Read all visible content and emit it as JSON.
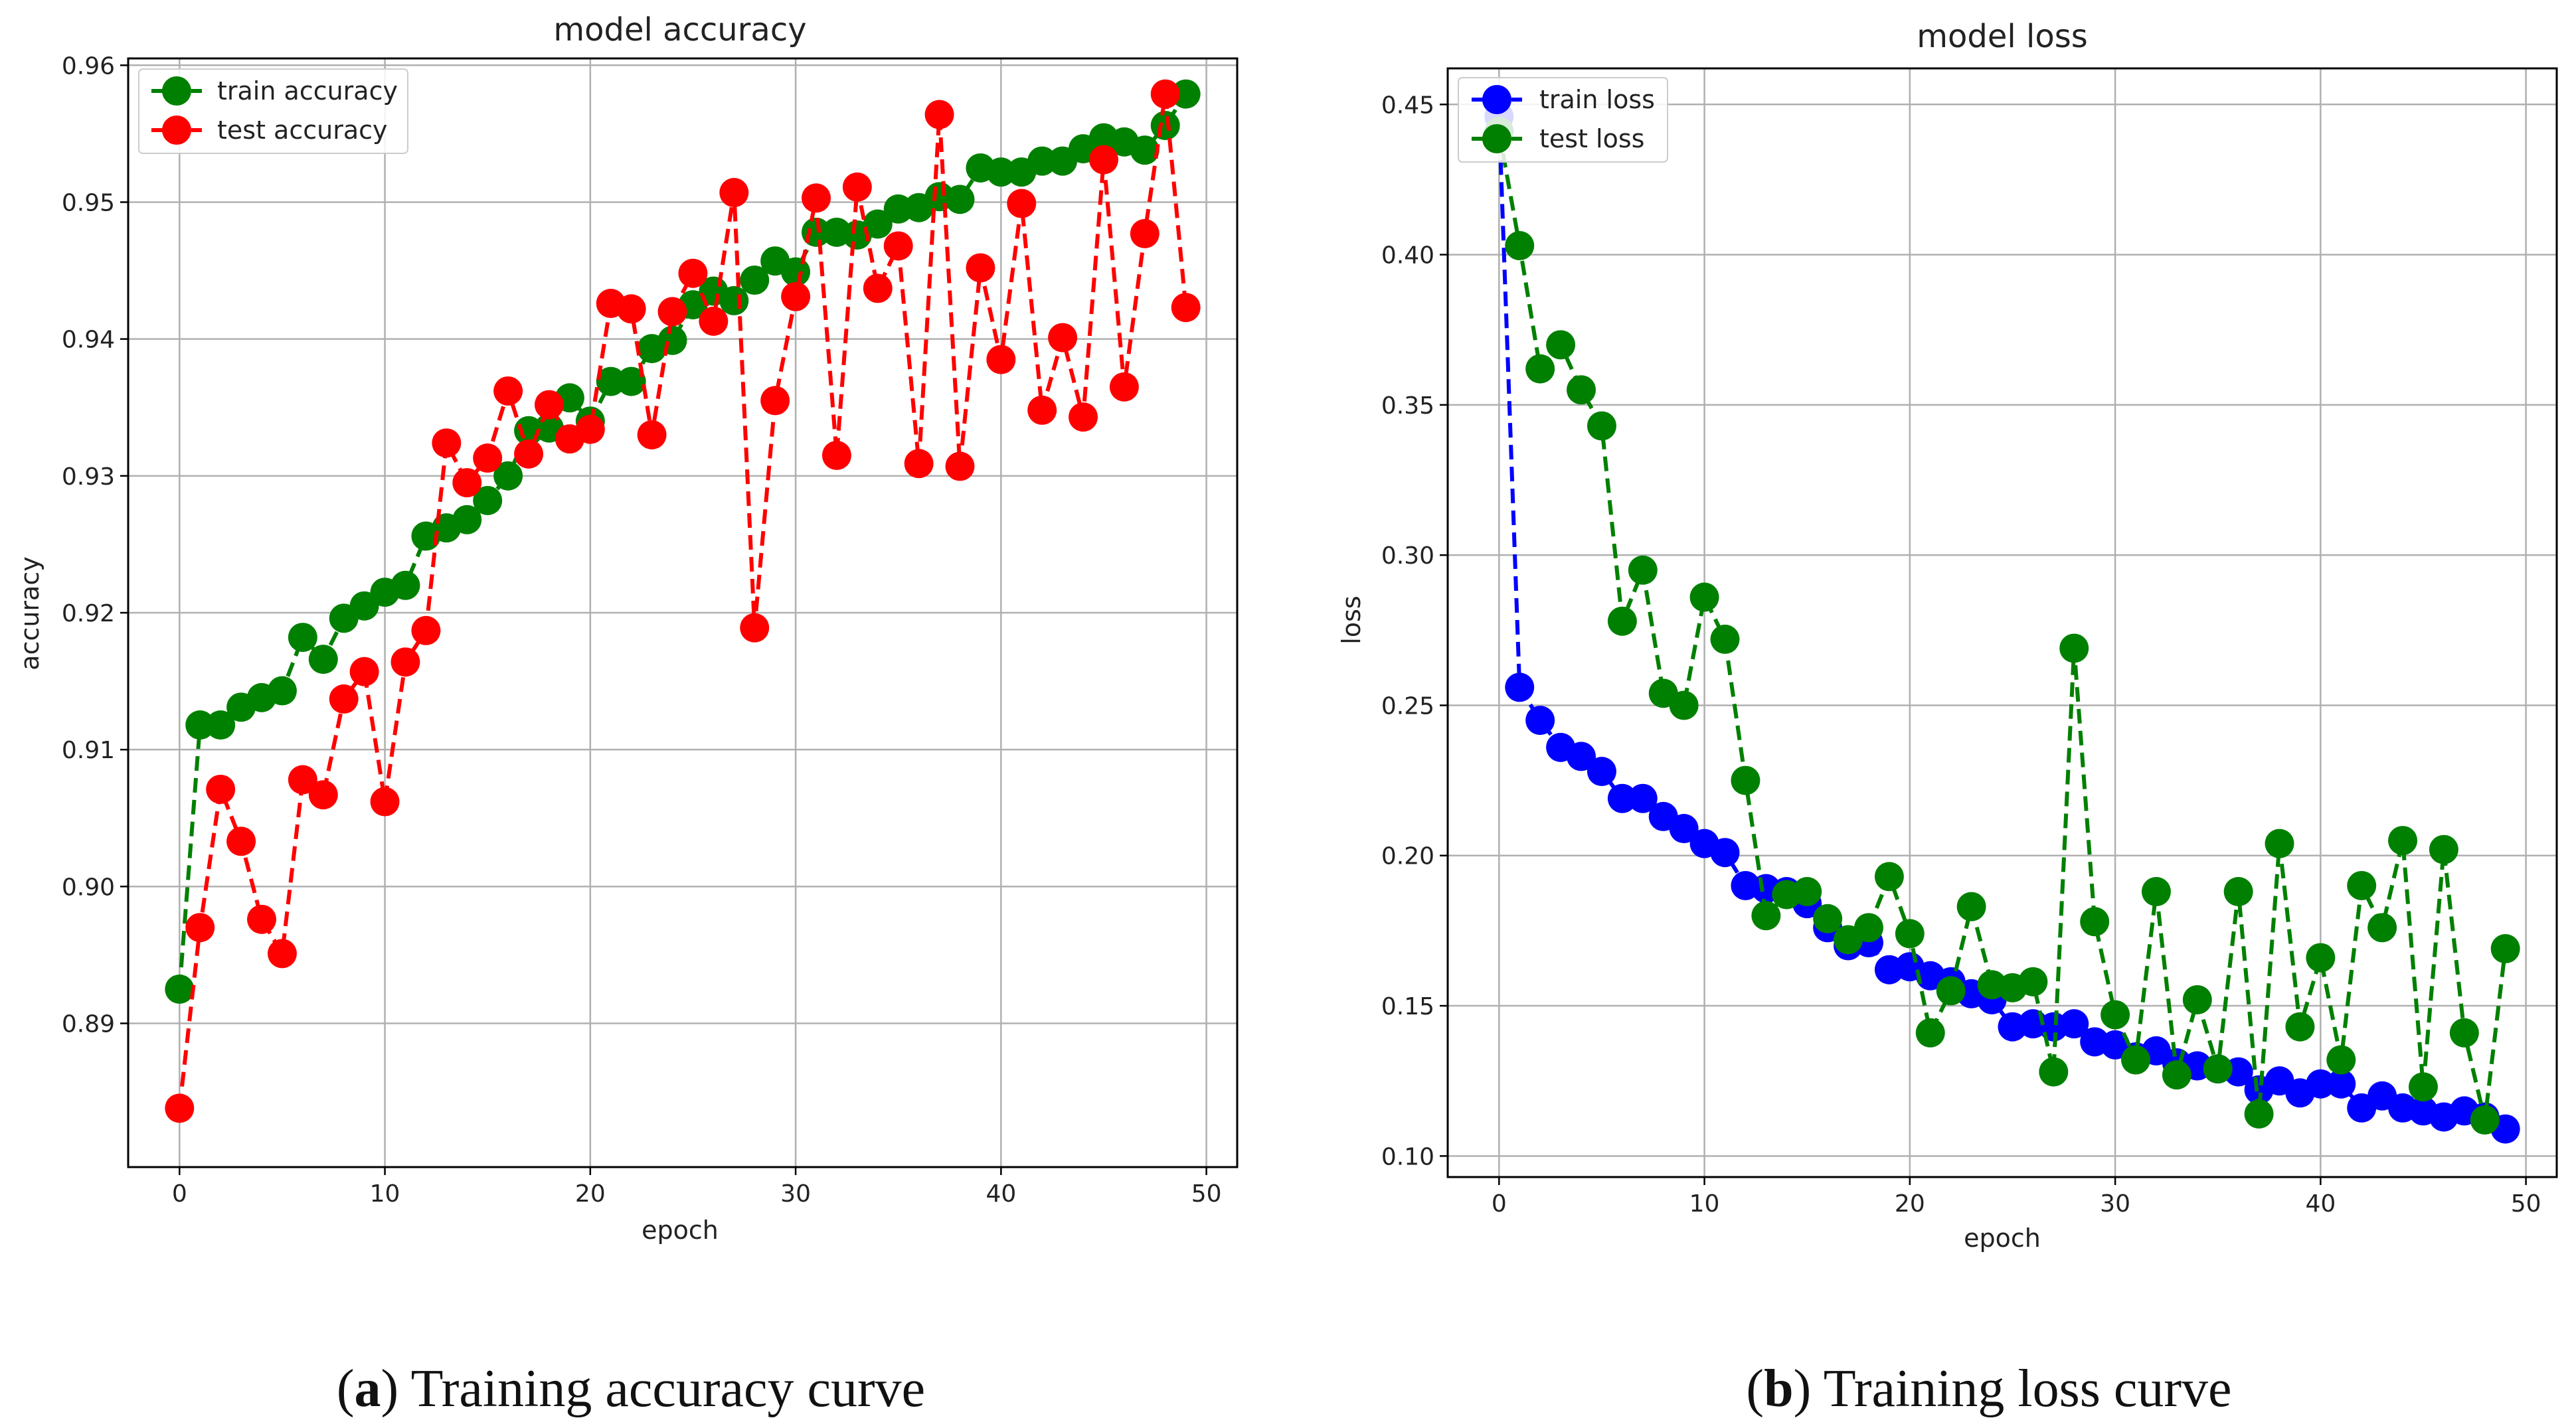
{
  "figure": {
    "captions": [
      {
        "letter": "a",
        "text": " Training accuracy curve"
      },
      {
        "letter": "b",
        "text": " Training loss curve"
      }
    ],
    "colors": {
      "green": "#008000",
      "red": "#ff0000",
      "blue": "#0000ff",
      "grid": "#b0b0b0"
    }
  },
  "chart_data": [
    {
      "type": "line",
      "title": "model accuracy",
      "xlabel": "epoch",
      "ylabel": "accuracy",
      "xlim": [
        -2.5,
        51.5
      ],
      "ylim": [
        0.8795,
        0.9605
      ],
      "xticks": [
        0,
        10,
        20,
        30,
        40,
        50
      ],
      "yticks": [
        0.89,
        0.9,
        0.91,
        0.92,
        0.93,
        0.94,
        0.95,
        0.96
      ],
      "ytick_labels": [
        "0.89",
        "0.90",
        "0.91",
        "0.92",
        "0.93",
        "0.94",
        "0.95",
        "0.96"
      ],
      "grid": true,
      "legend_position": "upper-left",
      "series": [
        {
          "name": "train accuracy",
          "color": "#008000",
          "values": [
            0.8925,
            0.9118,
            0.9118,
            0.9131,
            0.9138,
            0.9143,
            0.9182,
            0.9166,
            0.9196,
            0.9205,
            0.9215,
            0.922,
            0.9256,
            0.9262,
            0.9268,
            0.9282,
            0.93,
            0.9333,
            0.9335,
            0.9357,
            0.934,
            0.9369,
            0.9369,
            0.9393,
            0.9399,
            0.9425,
            0.9435,
            0.9428,
            0.9443,
            0.9457,
            0.9449,
            0.9478,
            0.9478,
            0.9476,
            0.9484,
            0.9495,
            0.9496,
            0.9504,
            0.9502,
            0.9525,
            0.9522,
            0.9522,
            0.953,
            0.953,
            0.9539,
            0.9547,
            0.9544,
            0.9538,
            0.9556,
            0.9579
          ]
        },
        {
          "name": "test accuracy",
          "color": "#ff0000",
          "values": [
            0.8838,
            0.897,
            0.9071,
            0.9033,
            0.8976,
            0.8951,
            0.9078,
            0.9067,
            0.9137,
            0.9157,
            0.9062,
            0.9164,
            0.9187,
            0.9324,
            0.9295,
            0.9313,
            0.9362,
            0.9316,
            0.9352,
            0.9327,
            0.9334,
            0.9426,
            0.9422,
            0.933,
            0.942,
            0.9448,
            0.9413,
            0.9507,
            0.9189,
            0.9355,
            0.9431,
            0.9503,
            0.9315,
            0.9511,
            0.9437,
            0.9468,
            0.9309,
            0.9564,
            0.9307,
            0.9452,
            0.9385,
            0.9499,
            0.9348,
            0.9401,
            0.9343,
            0.9531,
            0.9365,
            0.9477,
            0.9579,
            0.9423
          ]
        }
      ]
    },
    {
      "type": "line",
      "title": "model loss",
      "xlabel": "epoch",
      "ylabel": "loss",
      "xlim": [
        -2.5,
        51.5
      ],
      "ylim": [
        0.093,
        0.462
      ],
      "xticks": [
        0,
        10,
        20,
        30,
        40,
        50
      ],
      "yticks": [
        0.1,
        0.15,
        0.2,
        0.25,
        0.3,
        0.35,
        0.4,
        0.45
      ],
      "ytick_labels": [
        "0.10",
        "0.15",
        "0.20",
        "0.25",
        "0.30",
        "0.35",
        "0.40",
        "0.45"
      ],
      "grid": true,
      "legend_position": "upper-left",
      "series": [
        {
          "name": "train loss",
          "color": "#0000ff",
          "values": [
            0.446,
            0.256,
            0.245,
            0.236,
            0.233,
            0.228,
            0.219,
            0.219,
            0.213,
            0.209,
            0.204,
            0.201,
            0.19,
            0.189,
            0.188,
            0.184,
            0.176,
            0.17,
            0.171,
            0.162,
            0.163,
            0.16,
            0.158,
            0.154,
            0.152,
            0.143,
            0.144,
            0.143,
            0.144,
            0.138,
            0.137,
            0.133,
            0.135,
            0.131,
            0.13,
            0.129,
            0.128,
            0.122,
            0.125,
            0.121,
            0.124,
            0.124,
            0.116,
            0.12,
            0.116,
            0.115,
            0.113,
            0.115,
            0.113,
            0.109
          ]
        },
        {
          "name": "test loss",
          "color": "#008000",
          "values": [
            0.441,
            0.403,
            0.362,
            0.37,
            0.355,
            0.343,
            0.278,
            0.295,
            0.254,
            0.25,
            0.286,
            0.272,
            0.225,
            0.18,
            0.187,
            0.188,
            0.179,
            0.172,
            0.176,
            0.193,
            0.174,
            0.141,
            0.155,
            0.183,
            0.157,
            0.156,
            0.158,
            0.128,
            0.269,
            0.178,
            0.147,
            0.132,
            0.188,
            0.127,
            0.152,
            0.129,
            0.188,
            0.114,
            0.204,
            0.143,
            0.166,
            0.132,
            0.19,
            0.176,
            0.205,
            0.123,
            0.202,
            0.141,
            0.112,
            0.169
          ]
        }
      ]
    }
  ]
}
